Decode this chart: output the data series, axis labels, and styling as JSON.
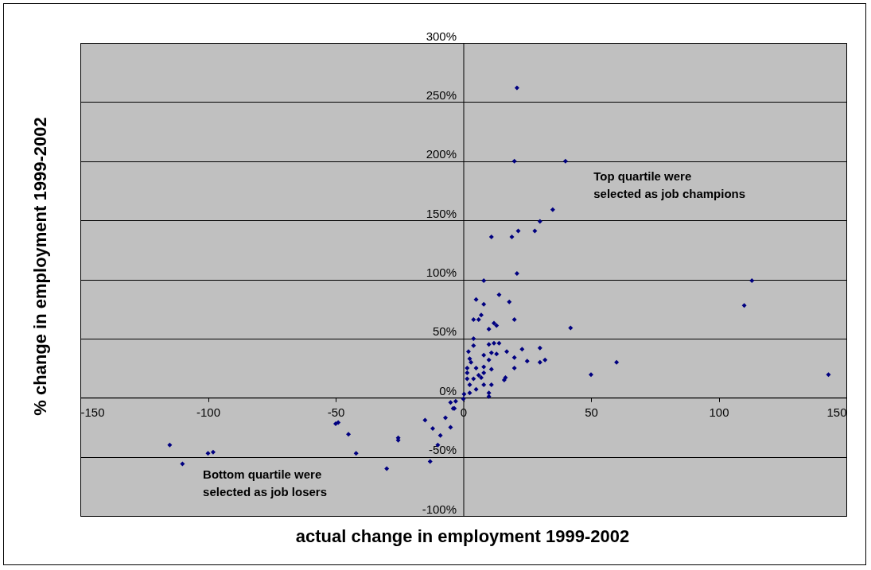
{
  "chart_data": {
    "type": "scatter",
    "xlabel": "actual change in employment 1999-2002",
    "ylabel": "% change in employment 1999-2002",
    "annotations": [
      "Top quartile were\nselected as job champions",
      "Bottom quartile were\nselected as job losers"
    ],
    "xlim": [
      -150,
      150
    ],
    "xticks": [
      -150,
      -100,
      -50,
      0,
      50,
      100,
      150
    ],
    "ylim": [
      -100,
      300
    ],
    "yticks": [
      {
        "value": -100,
        "label": "-100%"
      },
      {
        "value": -50,
        "label": "-50%"
      },
      {
        "value": 0,
        "label": "0%"
      },
      {
        "value": 50,
        "label": "50%"
      },
      {
        "value": 100,
        "label": "100%"
      },
      {
        "value": 150,
        "label": "150%"
      },
      {
        "value": 200,
        "label": "200%"
      },
      {
        "value": 250,
        "label": "250%"
      },
      {
        "value": 300,
        "label": "300%"
      }
    ],
    "grid": "y",
    "marker": "diamond",
    "series": [
      {
        "color": "#000080",
        "x": [
          -115,
          -110,
          -100,
          -98,
          -50,
          -49,
          -45,
          -42,
          -25.5,
          -25.5,
          -30,
          -15,
          -7,
          -12,
          -5,
          -9,
          -10,
          -13,
          -4,
          -3.5,
          -5,
          -3,
          21,
          20,
          40,
          35,
          30,
          28,
          21.5,
          11,
          19,
          21,
          8,
          113,
          110,
          14,
          5,
          8,
          18,
          7,
          6,
          4,
          20,
          12,
          13,
          10,
          42,
          4,
          4,
          10,
          12,
          14,
          2,
          8,
          11,
          13,
          17,
          23,
          30,
          2.5,
          10,
          20,
          25,
          32,
          30,
          60,
          3,
          1.5,
          5,
          8,
          11,
          20,
          1.5,
          6,
          8,
          1.5,
          4,
          7,
          16.5,
          16,
          50,
          143,
          2.5,
          8,
          11,
          5,
          10,
          10,
          2.5,
          0.3,
          0
        ],
        "values": [
          -40,
          -56,
          -47,
          -46,
          -22,
          -21,
          -31,
          -47,
          -34,
          -36,
          -60,
          -19,
          -17,
          -26,
          -25,
          -32,
          -40,
          -54,
          -9,
          -9,
          -4,
          -3,
          262,
          200,
          200,
          159,
          149,
          141,
          141,
          136,
          136,
          105,
          99,
          99,
          78,
          87,
          83,
          79,
          81,
          70,
          66,
          66,
          66,
          63,
          61,
          58,
          59,
          50,
          44,
          45,
          46,
          46,
          39,
          36,
          38,
          37,
          39,
          41,
          42,
          33,
          32,
          34,
          31,
          32,
          30,
          30,
          30,
          25,
          25,
          26,
          24,
          25,
          21,
          19,
          21,
          16,
          16,
          17,
          17,
          15,
          19.5,
          19.5,
          11,
          11,
          11,
          7,
          4,
          1,
          4,
          3,
          -1
        ]
      }
    ]
  }
}
